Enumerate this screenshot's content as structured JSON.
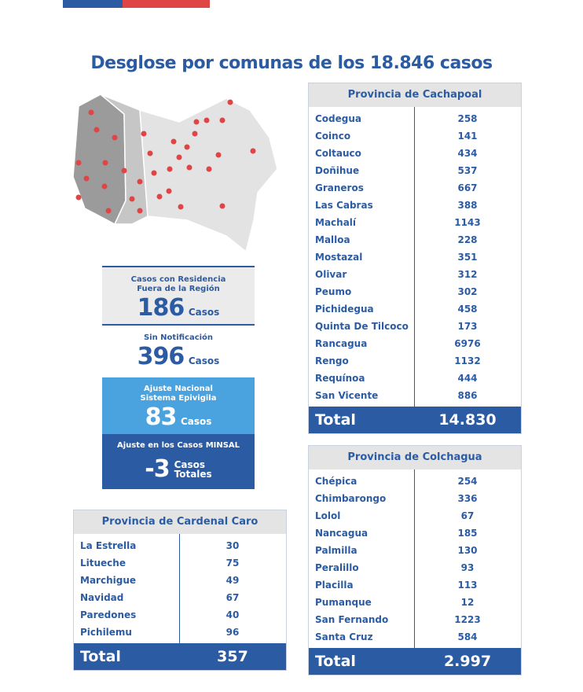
{
  "title": "Desglose por comunas de los 18.846 casos",
  "colors": {
    "primary": "#2b5ca3",
    "light_blue": "#4aa3df",
    "red": "#e04545"
  },
  "summary": {
    "fuera_region": {
      "label_1": "Casos con Residencia",
      "label_2": "Fuera de la Región",
      "value": "186",
      "unit": "Casos"
    },
    "sin_notificacion": {
      "label": "Sin Notificación",
      "value": "396",
      "unit": "Casos"
    },
    "ajuste_nacional": {
      "label_1": "Ajuste Nacional",
      "label_2": "Sistema Epivigila",
      "value": "83",
      "unit": "Casos"
    },
    "ajuste_minsal": {
      "label": "Ajuste en los Casos MINSAL",
      "value": "-3",
      "unit_1": "Casos",
      "unit_2": "Totales"
    }
  },
  "cachapoal": {
    "title": "Provincia de Cachapoal",
    "rows": [
      {
        "name": "Codegua",
        "value": "258"
      },
      {
        "name": "Coinco",
        "value": "141"
      },
      {
        "name": "Coltauco",
        "value": "434"
      },
      {
        "name": "Doñihue",
        "value": "537"
      },
      {
        "name": "Graneros",
        "value": "667"
      },
      {
        "name": "Las Cabras",
        "value": "388"
      },
      {
        "name": "Machalí",
        "value": "1143"
      },
      {
        "name": "Malloa",
        "value": "228"
      },
      {
        "name": "Mostazal",
        "value": "351"
      },
      {
        "name": "Olivar",
        "value": "312"
      },
      {
        "name": "Peumo",
        "value": "302"
      },
      {
        "name": "Pichidegua",
        "value": "458"
      },
      {
        "name": "Quinta De Tilcoco",
        "value": "173"
      },
      {
        "name": "Rancagua",
        "value": "6976"
      },
      {
        "name": "Rengo",
        "value": "1132"
      },
      {
        "name": "Requínoa",
        "value": "444"
      },
      {
        "name": "San Vicente",
        "value": "886"
      }
    ],
    "total_label": "Total",
    "total": "14.830"
  },
  "colchagua": {
    "title": "Provincia de Colchagua",
    "rows": [
      {
        "name": "Chépica",
        "value": "254"
      },
      {
        "name": "Chimbarongo",
        "value": "336"
      },
      {
        "name": "Lolol",
        "value": "67"
      },
      {
        "name": "Nancagua",
        "value": "185"
      },
      {
        "name": "Palmilla",
        "value": "130"
      },
      {
        "name": "Peralillo",
        "value": "93"
      },
      {
        "name": "Placilla",
        "value": "113"
      },
      {
        "name": "Pumanque",
        "value": "12"
      },
      {
        "name": "San Fernando",
        "value": "1223"
      },
      {
        "name": "Santa Cruz",
        "value": "584"
      }
    ],
    "total_label": "Total",
    "total": "2.997"
  },
  "cardenal_caro": {
    "title": "Provincia de Cardenal Caro",
    "rows": [
      {
        "name": "La Estrella",
        "value": "30"
      },
      {
        "name": "Litueche",
        "value": "75"
      },
      {
        "name": "Marchigue",
        "value": "49"
      },
      {
        "name": "Navidad",
        "value": "67"
      },
      {
        "name": "Paredones",
        "value": "40"
      },
      {
        "name": "Pichilemu",
        "value": "96"
      }
    ],
    "total_label": "Total",
    "total": "357"
  }
}
